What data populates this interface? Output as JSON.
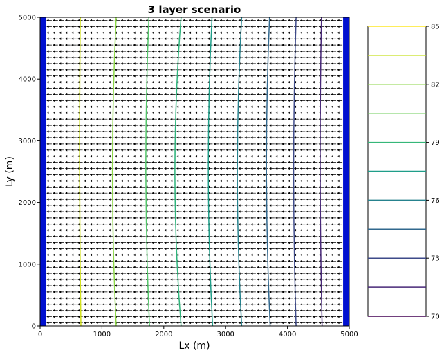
{
  "chart_data": [
    {
      "type": "contour",
      "title": "3 layer scenario",
      "xlabel": "Lx (m)",
      "ylabel": "Ly (m)",
      "xlim": [
        0,
        5000
      ],
      "ylim": [
        0,
        5000
      ],
      "xticks": [
        "0",
        "1000",
        "2000",
        "3000",
        "4000",
        "5000"
      ],
      "yticks": [
        "0",
        "1000",
        "2000",
        "3000",
        "4000",
        "5000"
      ],
      "grid": false,
      "colormap": "viridis",
      "boundary_color": "#0010d0",
      "boundaries": [
        {
          "side": "left",
          "x_range": [
            0,
            100
          ]
        },
        {
          "side": "right",
          "x_range": [
            4900,
            5000
          ]
        }
      ],
      "quiver": {
        "direction": "-x",
        "color": "#000000",
        "x_range": [
          100,
          4900
        ],
        "y_range": [
          0,
          5000
        ]
      },
      "contour_levels": [
        {
          "level": 84.5,
          "color": "#d2e21b",
          "x_at_y": [
            [
              0,
              660
            ],
            [
              2500,
              640
            ],
            [
              5000,
              650
            ]
          ]
        },
        {
          "level": 83.0,
          "color": "#8bd646",
          "x_at_y": [
            [
              0,
              1230
            ],
            [
              2500,
              1170
            ],
            [
              5000,
              1230
            ]
          ]
        },
        {
          "level": 81.5,
          "color": "#52c569",
          "x_at_y": [
            [
              0,
              1770
            ],
            [
              2500,
              1710
            ],
            [
              5000,
              1760
            ]
          ]
        },
        {
          "level": 80.0,
          "color": "#2fb47c",
          "x_at_y": [
            [
              0,
              2280
            ],
            [
              2500,
              2180
            ],
            [
              5000,
              2280
            ]
          ]
        },
        {
          "level": 78.5,
          "color": "#1f9e89",
          "x_at_y": [
            [
              0,
              2790
            ],
            [
              2500,
              2720
            ],
            [
              5000,
              2780
            ]
          ]
        },
        {
          "level": 77.0,
          "color": "#26828e",
          "x_at_y": [
            [
              0,
              3260
            ],
            [
              2500,
              3190
            ],
            [
              5000,
              3260
            ]
          ]
        },
        {
          "level": 75.5,
          "color": "#31688e",
          "x_at_y": [
            [
              0,
              3720
            ],
            [
              2500,
              3660
            ],
            [
              5000,
              3710
            ]
          ]
        },
        {
          "level": 74.0,
          "color": "#3e4a89",
          "x_at_y": [
            [
              0,
              4140
            ],
            [
              2500,
              4100
            ],
            [
              5000,
              4140
            ]
          ]
        },
        {
          "level": 72.5,
          "color": "#482878",
          "x_at_y": [
            [
              0,
              4560
            ],
            [
              2500,
              4530
            ],
            [
              5000,
              4550
            ]
          ]
        }
      ]
    },
    {
      "type": "colorbar",
      "ticks": [
        "70",
        "73",
        "76",
        "79",
        "82",
        "85"
      ],
      "range": [
        70,
        85
      ],
      "lines": [
        {
          "value": 70.0,
          "color": "#440154"
        },
        {
          "value": 71.5,
          "color": "#482878"
        },
        {
          "value": 73.0,
          "color": "#3e4a89"
        },
        {
          "value": 74.5,
          "color": "#31688e"
        },
        {
          "value": 76.0,
          "color": "#26828e"
        },
        {
          "value": 77.5,
          "color": "#1f9e89"
        },
        {
          "value": 79.0,
          "color": "#35b779"
        },
        {
          "value": 80.5,
          "color": "#6ece58"
        },
        {
          "value": 82.0,
          "color": "#8bd646"
        },
        {
          "value": 83.5,
          "color": "#c8e020"
        },
        {
          "value": 85.0,
          "color": "#fde725"
        }
      ]
    }
  ]
}
